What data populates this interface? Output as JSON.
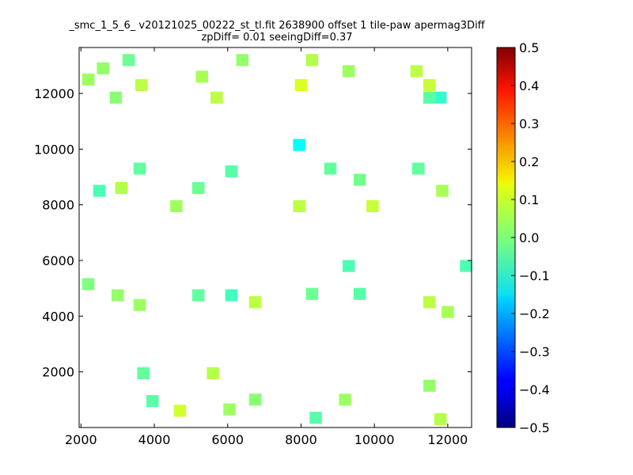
{
  "chart_data": {
    "type": "heatmap",
    "title_line1": "_smc_1_5_6_ v20121025_00222_st_tl.fit 2638900 offset 1 tile-paw apermag3Diff",
    "title_line2": "zpDiff= 0.01 seeingDiff=0.37",
    "xlabel": "",
    "ylabel": "",
    "xlim": [
      1950,
      12650
    ],
    "ylim": [
      0,
      13650
    ],
    "x_ticks": [
      2000,
      4000,
      6000,
      8000,
      10000,
      12000
    ],
    "y_ticks": [
      2000,
      4000,
      6000,
      8000,
      10000,
      12000
    ],
    "colorbar": {
      "range": [
        -0.5,
        0.5
      ],
      "ticks": [
        "0.5",
        "0.4",
        "0.3",
        "0.2",
        "0.1",
        "0.0",
        "−0.1",
        "−0.2",
        "−0.3",
        "−0.4",
        "−0.5"
      ],
      "colormap": "jet"
    },
    "grid": false,
    "cell_size": [
      335,
      430
    ],
    "cells": [
      {
        "x": 2200,
        "y": 12500,
        "v": 0.03
      },
      {
        "x": 2600,
        "y": 12900,
        "v": 0.02
      },
      {
        "x": 3300,
        "y": 13200,
        "v": -0.02
      },
      {
        "x": 3650,
        "y": 12300,
        "v": 0.06
      },
      {
        "x": 2950,
        "y": 11850,
        "v": 0.01
      },
      {
        "x": 5300,
        "y": 12600,
        "v": 0.04
      },
      {
        "x": 5700,
        "y": 11850,
        "v": 0.06
      },
      {
        "x": 6400,
        "y": 13200,
        "v": 0.02
      },
      {
        "x": 8300,
        "y": 13200,
        "v": 0.05
      },
      {
        "x": 8000,
        "y": 12300,
        "v": 0.09
      },
      {
        "x": 9300,
        "y": 12800,
        "v": 0.03
      },
      {
        "x": 11150,
        "y": 12800,
        "v": 0.06
      },
      {
        "x": 11500,
        "y": 12300,
        "v": 0.07
      },
      {
        "x": 11800,
        "y": 11850,
        "v": -0.08
      },
      {
        "x": 11500,
        "y": 11850,
        "v": -0.04
      },
      {
        "x": 7950,
        "y": 10150,
        "v": -0.12
      },
      {
        "x": 2500,
        "y": 8500,
        "v": -0.05
      },
      {
        "x": 3100,
        "y": 8600,
        "v": 0.05
      },
      {
        "x": 3600,
        "y": 9300,
        "v": -0.03
      },
      {
        "x": 5200,
        "y": 8600,
        "v": -0.02
      },
      {
        "x": 6100,
        "y": 9200,
        "v": -0.04
      },
      {
        "x": 4600,
        "y": 7950,
        "v": 0.03
      },
      {
        "x": 7950,
        "y": 7950,
        "v": 0.06
      },
      {
        "x": 8800,
        "y": 9300,
        "v": -0.03
      },
      {
        "x": 9600,
        "y": 8900,
        "v": -0.01
      },
      {
        "x": 9950,
        "y": 7950,
        "v": 0.07
      },
      {
        "x": 11200,
        "y": 9300,
        "v": -0.03
      },
      {
        "x": 11850,
        "y": 8500,
        "v": 0.04
      },
      {
        "x": 2200,
        "y": 5150,
        "v": 0.0
      },
      {
        "x": 3000,
        "y": 4750,
        "v": 0.02
      },
      {
        "x": 3600,
        "y": 4400,
        "v": 0.03
      },
      {
        "x": 5200,
        "y": 4750,
        "v": -0.03
      },
      {
        "x": 6100,
        "y": 4750,
        "v": -0.06
      },
      {
        "x": 6750,
        "y": 4500,
        "v": 0.06
      },
      {
        "x": 8300,
        "y": 4800,
        "v": -0.02
      },
      {
        "x": 9300,
        "y": 5800,
        "v": -0.05
      },
      {
        "x": 9600,
        "y": 4800,
        "v": -0.04
      },
      {
        "x": 11500,
        "y": 4500,
        "v": 0.06
      },
      {
        "x": 12000,
        "y": 4150,
        "v": 0.04
      },
      {
        "x": 12500,
        "y": 5800,
        "v": -0.05
      },
      {
        "x": 3700,
        "y": 1950,
        "v": -0.03
      },
      {
        "x": 3950,
        "y": 950,
        "v": -0.04
      },
      {
        "x": 4700,
        "y": 600,
        "v": 0.08
      },
      {
        "x": 5600,
        "y": 1950,
        "v": 0.05
      },
      {
        "x": 6050,
        "y": 650,
        "v": 0.03
      },
      {
        "x": 6750,
        "y": 1000,
        "v": 0.01
      },
      {
        "x": 8400,
        "y": 350,
        "v": -0.04
      },
      {
        "x": 9200,
        "y": 1000,
        "v": 0.03
      },
      {
        "x": 11500,
        "y": 1500,
        "v": 0.02
      },
      {
        "x": 11800,
        "y": 300,
        "v": 0.05
      }
    ]
  }
}
